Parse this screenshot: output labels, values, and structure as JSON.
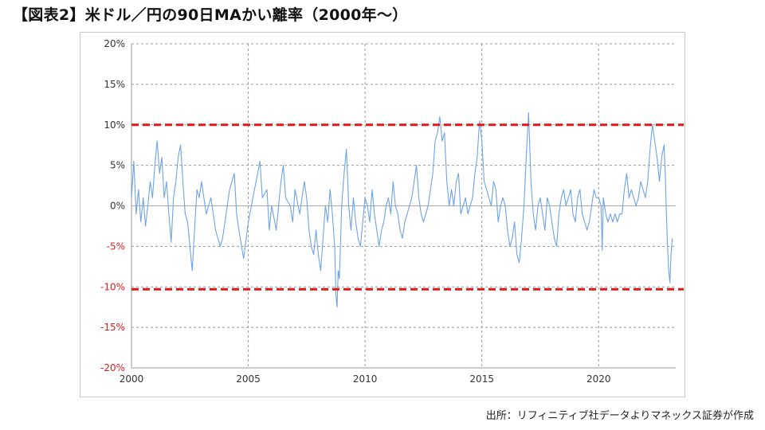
{
  "title": "【図表2】米ドル／円の90日MAかい離率（2000年～）",
  "source": "出所：リフィニティブ社データよりマネックス証券が作成",
  "colors": {
    "series": "#6fa3e8",
    "threshold": "#e01818",
    "grid": "#9a9a9a",
    "zero_line": "#a9a9a9",
    "positive_tick": "#333333",
    "negative_tick": "#e02020",
    "axis": "#999999"
  },
  "chart_data": {
    "type": "line",
    "title": "",
    "xlabel": "",
    "ylabel": "",
    "xlim": [
      2000,
      2023.3
    ],
    "ylim": [
      -20,
      20
    ],
    "x_ticks": [
      2000,
      2005,
      2010,
      2015,
      2020
    ],
    "x_tick_labels": [
      "2000",
      "2005",
      "2010",
      "2015",
      "2020"
    ],
    "y_ticks": [
      20,
      15,
      10,
      5,
      0,
      -5,
      -10,
      -15,
      -20
    ],
    "y_tick_labels": [
      "20%",
      "15%",
      "10%",
      "5%",
      "0%",
      "-5%",
      "-10%",
      "-15%",
      "-20%"
    ],
    "grid": true,
    "reference_lines": [
      {
        "y": 10,
        "style": "dashed"
      },
      {
        "y": -10.3,
        "style": "dashed"
      }
    ],
    "series": [
      {
        "values": [
          [
            2000.0,
            1
          ],
          [
            2000.1,
            5.5
          ],
          [
            2000.2,
            -1
          ],
          [
            2000.3,
            2
          ],
          [
            2000.4,
            -2
          ],
          [
            2000.5,
            1
          ],
          [
            2000.6,
            -2.5
          ],
          [
            2000.7,
            0
          ],
          [
            2000.8,
            3
          ],
          [
            2000.9,
            1
          ],
          [
            2001.0,
            5
          ],
          [
            2001.1,
            8
          ],
          [
            2001.2,
            4
          ],
          [
            2001.3,
            6
          ],
          [
            2001.4,
            1
          ],
          [
            2001.5,
            3
          ],
          [
            2001.6,
            -1
          ],
          [
            2001.7,
            -4.5
          ],
          [
            2001.8,
            1
          ],
          [
            2001.9,
            3
          ],
          [
            2002.0,
            6
          ],
          [
            2002.1,
            7.5
          ],
          [
            2002.2,
            3
          ],
          [
            2002.3,
            -1
          ],
          [
            2002.4,
            -2
          ],
          [
            2002.5,
            -5
          ],
          [
            2002.6,
            -8
          ],
          [
            2002.7,
            -3
          ],
          [
            2002.8,
            2
          ],
          [
            2002.9,
            1
          ],
          [
            2003.0,
            3
          ],
          [
            2003.2,
            -1
          ],
          [
            2003.4,
            1
          ],
          [
            2003.6,
            -3
          ],
          [
            2003.8,
            -5
          ],
          [
            2003.9,
            -4
          ],
          [
            2004.0,
            -2
          ],
          [
            2004.2,
            2
          ],
          [
            2004.4,
            4
          ],
          [
            2004.5,
            -1
          ],
          [
            2004.6,
            -3
          ],
          [
            2004.8,
            -6.5
          ],
          [
            2005.0,
            -2
          ],
          [
            2005.2,
            1
          ],
          [
            2005.4,
            4
          ],
          [
            2005.5,
            5.5
          ],
          [
            2005.6,
            1
          ],
          [
            2005.8,
            2
          ],
          [
            2005.9,
            -3
          ],
          [
            2006.0,
            0
          ],
          [
            2006.2,
            -3
          ],
          [
            2006.4,
            3
          ],
          [
            2006.5,
            5
          ],
          [
            2006.6,
            1
          ],
          [
            2006.8,
            0
          ],
          [
            2006.9,
            -2
          ],
          [
            2007.0,
            2
          ],
          [
            2007.2,
            -1
          ],
          [
            2007.4,
            3
          ],
          [
            2007.5,
            1
          ],
          [
            2007.6,
            -3
          ],
          [
            2007.7,
            -5
          ],
          [
            2007.8,
            -6
          ],
          [
            2007.9,
            -3
          ],
          [
            2008.0,
            -6
          ],
          [
            2008.1,
            -8
          ],
          [
            2008.2,
            -4
          ],
          [
            2008.3,
            0
          ],
          [
            2008.4,
            -2
          ],
          [
            2008.5,
            2
          ],
          [
            2008.6,
            -1
          ],
          [
            2008.7,
            -5
          ],
          [
            2008.75,
            -11
          ],
          [
            2008.8,
            -12.5
          ],
          [
            2008.85,
            -8
          ],
          [
            2008.9,
            -9
          ],
          [
            2009.0,
            0
          ],
          [
            2009.1,
            4
          ],
          [
            2009.2,
            7
          ],
          [
            2009.3,
            0
          ],
          [
            2009.4,
            -3
          ],
          [
            2009.5,
            1
          ],
          [
            2009.6,
            -2
          ],
          [
            2009.7,
            -4
          ],
          [
            2009.8,
            -5
          ],
          [
            2009.9,
            -2
          ],
          [
            2010.0,
            1
          ],
          [
            2010.1,
            0
          ],
          [
            2010.2,
            -2
          ],
          [
            2010.3,
            2
          ],
          [
            2010.4,
            -1
          ],
          [
            2010.5,
            -3
          ],
          [
            2010.6,
            -5
          ],
          [
            2010.7,
            -3
          ],
          [
            2010.8,
            -2
          ],
          [
            2010.9,
            0
          ],
          [
            2011.0,
            1
          ],
          [
            2011.1,
            -1
          ],
          [
            2011.2,
            3
          ],
          [
            2011.3,
            0
          ],
          [
            2011.4,
            -1
          ],
          [
            2011.5,
            -3
          ],
          [
            2011.6,
            -4
          ],
          [
            2011.7,
            -2
          ],
          [
            2011.8,
            -1
          ],
          [
            2011.9,
            0
          ],
          [
            2012.0,
            1
          ],
          [
            2012.1,
            3
          ],
          [
            2012.2,
            5
          ],
          [
            2012.3,
            1
          ],
          [
            2012.4,
            -1
          ],
          [
            2012.5,
            -2
          ],
          [
            2012.6,
            -1
          ],
          [
            2012.7,
            0
          ],
          [
            2012.8,
            2
          ],
          [
            2012.9,
            4
          ],
          [
            2013.0,
            8
          ],
          [
            2013.1,
            9
          ],
          [
            2013.2,
            11
          ],
          [
            2013.3,
            8
          ],
          [
            2013.4,
            9
          ],
          [
            2013.5,
            3
          ],
          [
            2013.6,
            0
          ],
          [
            2013.7,
            2
          ],
          [
            2013.8,
            0
          ],
          [
            2013.9,
            3
          ],
          [
            2014.0,
            4
          ],
          [
            2014.1,
            -1
          ],
          [
            2014.2,
            0
          ],
          [
            2014.3,
            1
          ],
          [
            2014.4,
            -1
          ],
          [
            2014.5,
            0
          ],
          [
            2014.6,
            1
          ],
          [
            2014.7,
            4
          ],
          [
            2014.8,
            6
          ],
          [
            2014.9,
            10.5
          ],
          [
            2015.0,
            8
          ],
          [
            2015.1,
            3
          ],
          [
            2015.2,
            2
          ],
          [
            2015.3,
            1
          ],
          [
            2015.4,
            0
          ],
          [
            2015.5,
            3
          ],
          [
            2015.6,
            2
          ],
          [
            2015.7,
            -2
          ],
          [
            2015.8,
            0
          ],
          [
            2015.9,
            1
          ],
          [
            2016.0,
            0
          ],
          [
            2016.1,
            -3
          ],
          [
            2016.2,
            -5
          ],
          [
            2016.3,
            -4
          ],
          [
            2016.4,
            -2
          ],
          [
            2016.5,
            -6
          ],
          [
            2016.6,
            -7
          ],
          [
            2016.7,
            -4
          ],
          [
            2016.8,
            0
          ],
          [
            2016.9,
            6
          ],
          [
            2017.0,
            11.5
          ],
          [
            2017.1,
            3
          ],
          [
            2017.2,
            -1
          ],
          [
            2017.3,
            -3
          ],
          [
            2017.4,
            0
          ],
          [
            2017.5,
            1
          ],
          [
            2017.6,
            -1
          ],
          [
            2017.7,
            -3
          ],
          [
            2017.8,
            1
          ],
          [
            2017.9,
            0
          ],
          [
            2018.0,
            -2
          ],
          [
            2018.1,
            -4
          ],
          [
            2018.2,
            -5
          ],
          [
            2018.3,
            -1
          ],
          [
            2018.4,
            1
          ],
          [
            2018.5,
            2
          ],
          [
            2018.6,
            0
          ],
          [
            2018.7,
            1
          ],
          [
            2018.8,
            2
          ],
          [
            2018.9,
            -1
          ],
          [
            2019.0,
            -2
          ],
          [
            2019.1,
            1
          ],
          [
            2019.2,
            2
          ],
          [
            2019.3,
            -1
          ],
          [
            2019.4,
            -2
          ],
          [
            2019.5,
            -3
          ],
          [
            2019.6,
            -2
          ],
          [
            2019.7,
            0
          ],
          [
            2019.8,
            2
          ],
          [
            2019.9,
            1
          ],
          [
            2020.0,
            1
          ],
          [
            2020.1,
            0
          ],
          [
            2020.15,
            -5.5
          ],
          [
            2020.2,
            1
          ],
          [
            2020.3,
            -1
          ],
          [
            2020.4,
            -2
          ],
          [
            2020.5,
            -1
          ],
          [
            2020.6,
            -2
          ],
          [
            2020.7,
            -1
          ],
          [
            2020.8,
            -2
          ],
          [
            2020.9,
            -1
          ],
          [
            2021.0,
            -1
          ],
          [
            2021.1,
            2
          ],
          [
            2021.2,
            4
          ],
          [
            2021.3,
            1
          ],
          [
            2021.4,
            2
          ],
          [
            2021.5,
            1
          ],
          [
            2021.6,
            0
          ],
          [
            2021.7,
            1
          ],
          [
            2021.8,
            3
          ],
          [
            2021.9,
            2
          ],
          [
            2022.0,
            1
          ],
          [
            2022.1,
            3
          ],
          [
            2022.2,
            7
          ],
          [
            2022.3,
            10
          ],
          [
            2022.4,
            8
          ],
          [
            2022.5,
            6
          ],
          [
            2022.6,
            3
          ],
          [
            2022.7,
            6
          ],
          [
            2022.8,
            7.5
          ],
          [
            2022.85,
            4
          ],
          [
            2022.9,
            -1
          ],
          [
            2022.95,
            -5
          ],
          [
            2023.0,
            -8
          ],
          [
            2023.05,
            -9.5
          ],
          [
            2023.1,
            -6
          ],
          [
            2023.15,
            -4
          ]
        ]
      }
    ]
  }
}
